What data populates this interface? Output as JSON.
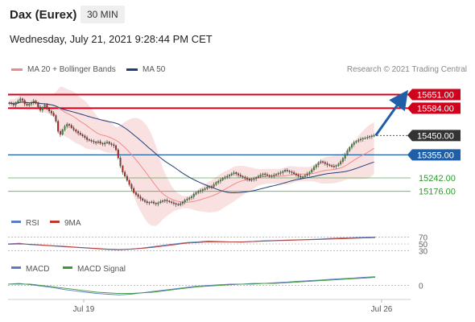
{
  "header": {
    "instrument": "Dax (Eurex)",
    "interval": "30 MIN",
    "datetime": "Wednesday, July 21, 2021 9:28:44 PM CET"
  },
  "legend": {
    "ma20": "MA 20 + Bollinger Bands",
    "ma50": "MA 50",
    "credit": "Research © 2021 Trading Central"
  },
  "colors": {
    "resistance": "#d0021b",
    "pivot": "#1f5fa8",
    "support": "#2e9a2e",
    "last": "#333333",
    "up_candle": "#2e9a2e",
    "down_candle": "#b3261e",
    "rsi": "#5b7bc4",
    "rsi_ma": "#c0392b",
    "macd": "#5b7bc4",
    "macd_signal": "#3a9a3a",
    "bollinger": "#f6c9c9"
  },
  "chart_data": [
    {
      "type": "candlestick",
      "title": "Dax (Eurex)",
      "ylim": [
        15080,
        15720
      ],
      "x_labels": [
        "Jul 19",
        "Jul 26"
      ],
      "levels": [
        {
          "label": "15651.00",
          "value": 15651,
          "kind": "resistance"
        },
        {
          "label": "15584.00",
          "value": 15584,
          "kind": "resistance"
        },
        {
          "label": "15450.00",
          "value": 15450,
          "kind": "last"
        },
        {
          "label": "15355.00",
          "value": 15355,
          "kind": "pivot"
        },
        {
          "label": "15242.00",
          "value": 15242,
          "kind": "support"
        },
        {
          "label": "15176.00",
          "value": 15176,
          "kind": "support"
        }
      ],
      "forecast_target": 15651,
      "close_series": [
        15610,
        15606,
        15600,
        15612,
        15620,
        15630,
        15622,
        15605,
        15598,
        15604,
        15612,
        15620,
        15608,
        15590,
        15575,
        15588,
        15600,
        15582,
        15570,
        15560,
        15548,
        15520,
        15470,
        15455,
        15478,
        15495,
        15505,
        15500,
        15488,
        15478,
        15470,
        15462,
        15455,
        15448,
        15440,
        15430,
        15426,
        15422,
        15418,
        15415,
        15420,
        15412,
        15408,
        15414,
        15418,
        15410,
        15405,
        15400,
        15380,
        15340,
        15300,
        15270,
        15250,
        15230,
        15210,
        15190,
        15170,
        15160,
        15150,
        15140,
        15132,
        15126,
        15120,
        15122,
        15124,
        15118,
        15114,
        15120,
        15126,
        15130,
        15132,
        15128,
        15124,
        15120,
        15116,
        15112,
        15110,
        15116,
        15124,
        15132,
        15138,
        15144,
        15150,
        15162,
        15170,
        15175,
        15180,
        15185,
        15190,
        15198,
        15200,
        15198,
        15210,
        15220,
        15226,
        15232,
        15240,
        15246,
        15250,
        15256,
        15262,
        15268,
        15262,
        15256,
        15250,
        15246,
        15240,
        15236,
        15230,
        15234,
        15238,
        15244,
        15250,
        15256,
        15262,
        15258,
        15254,
        15250,
        15252,
        15256,
        15260,
        15264,
        15268,
        15274,
        15280,
        15276,
        15272,
        15268,
        15262,
        15256,
        15250,
        15246,
        15248,
        15254,
        15262,
        15270,
        15282,
        15294,
        15306,
        15316,
        15322,
        15318,
        15312,
        15306,
        15302,
        15300,
        15298,
        15302,
        15310,
        15322,
        15338,
        15356,
        15376,
        15392,
        15406,
        15416,
        15422,
        15428,
        15432,
        15436,
        15438,
        15442,
        15446,
        15448,
        15450
      ]
    },
    {
      "type": "line",
      "title": "RSI",
      "series": [
        {
          "name": "RSI",
          "values": [
            50,
            52,
            48,
            46,
            44,
            42,
            40,
            38,
            36,
            34,
            33,
            35,
            38,
            42,
            46,
            50,
            54,
            56,
            58,
            57,
            56,
            55,
            57,
            59,
            60,
            61,
            62,
            63,
            64,
            66,
            67,
            68,
            69,
            70
          ]
        },
        {
          "name": "9MA",
          "values": [
            49,
            50,
            49,
            47,
            45,
            43,
            41,
            39,
            37,
            35,
            34,
            35,
            37,
            40,
            44,
            48,
            52,
            54,
            56,
            56,
            56,
            56,
            57,
            58,
            59,
            60,
            61,
            62,
            63,
            64,
            65,
            66,
            67,
            68
          ]
        }
      ],
      "levels": [
        "70",
        "50",
        "30"
      ],
      "ylim": [
        20,
        80
      ]
    },
    {
      "type": "line",
      "title": "MACD",
      "series": [
        {
          "name": "MACD",
          "values": [
            2,
            3,
            1,
            -1,
            -3,
            -6,
            -8,
            -10,
            -12,
            -13,
            -14,
            -13,
            -11,
            -9,
            -7,
            -5,
            -3,
            -1,
            0,
            1,
            2,
            2,
            3,
            3,
            4,
            5,
            6,
            7,
            8,
            9,
            10,
            11,
            12,
            13
          ]
        },
        {
          "name": "MACD Signal",
          "values": [
            2,
            2,
            2,
            0,
            -2,
            -4,
            -6,
            -8,
            -10,
            -11,
            -12,
            -12,
            -11,
            -10,
            -8,
            -6,
            -4,
            -2,
            -1,
            0,
            1,
            2,
            2,
            3,
            3,
            4,
            5,
            6,
            7,
            8,
            9,
            10,
            11,
            12
          ]
        }
      ],
      "levels": [
        "0"
      ]
    }
  ]
}
